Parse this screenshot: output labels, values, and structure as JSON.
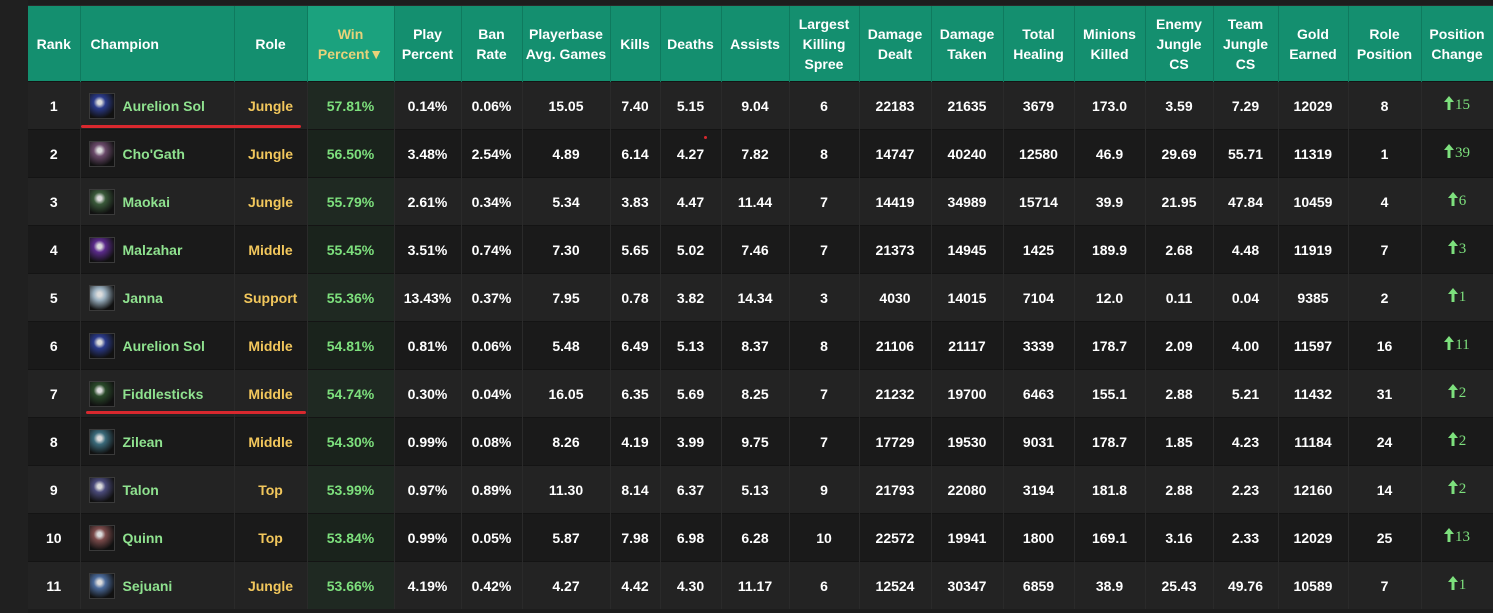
{
  "headers": {
    "rank": "Rank",
    "champion": "Champion",
    "role": "Role",
    "win_percent": "Win Percent▼",
    "play_percent": "Play Percent",
    "ban_rate": "Ban Rate",
    "avg_games": "Playerbase Avg. Games",
    "kills": "Kills",
    "deaths": "Deaths",
    "assists": "Assists",
    "killing_spree": "Largest Killing Spree",
    "damage_dealt": "Damage Dealt",
    "damage_taken": "Damage Taken",
    "total_healing": "Total Healing",
    "minions_killed": "Minions Killed",
    "enemy_jungle_cs": "Enemy Jungle CS",
    "team_jungle_cs": "Team Jungle CS",
    "gold_earned": "Gold Earned",
    "role_position": "Role Position",
    "position_change": "Position Change"
  },
  "colors": {
    "header_bg": "#148f6f",
    "champion_text": "#8fe28f",
    "role_text": "#f2c75c",
    "win_text": "#7de07d",
    "annotation_red": "#d8282e"
  },
  "rows": [
    {
      "rank": "1",
      "champion": "Aurelion Sol",
      "icon": "aurelion-sol-icon",
      "icon_color": "#2a3a8a",
      "role": "Jungle",
      "win": "57.81%",
      "play": "0.14%",
      "ban": "0.06%",
      "avg_games": "15.05",
      "kills": "7.40",
      "deaths": "5.15",
      "assists": "9.04",
      "spree": "6",
      "dmg_dealt": "22183",
      "dmg_taken": "21635",
      "healing": "3679",
      "minions": "173.0",
      "enemy_jcs": "3.59",
      "team_jcs": "7.29",
      "gold": "12029",
      "role_pos": "8",
      "pos_change": "15"
    },
    {
      "rank": "2",
      "champion": "Cho'Gath",
      "icon": "chogath-icon",
      "icon_color": "#6a4a6a",
      "role": "Jungle",
      "win": "56.50%",
      "play": "3.48%",
      "ban": "2.54%",
      "avg_games": "4.89",
      "kills": "6.14",
      "deaths": "4.27",
      "assists": "7.82",
      "spree": "8",
      "dmg_dealt": "14747",
      "dmg_taken": "40240",
      "healing": "12580",
      "minions": "46.9",
      "enemy_jcs": "29.69",
      "team_jcs": "55.71",
      "gold": "11319",
      "role_pos": "1",
      "pos_change": "39"
    },
    {
      "rank": "3",
      "champion": "Maokai",
      "icon": "maokai-icon",
      "icon_color": "#3a5a3a",
      "role": "Jungle",
      "win": "55.79%",
      "play": "2.61%",
      "ban": "0.34%",
      "avg_games": "5.34",
      "kills": "3.83",
      "deaths": "4.47",
      "assists": "11.44",
      "spree": "7",
      "dmg_dealt": "14419",
      "dmg_taken": "34989",
      "healing": "15714",
      "minions": "39.9",
      "enemy_jcs": "21.95",
      "team_jcs": "47.84",
      "gold": "10459",
      "role_pos": "4",
      "pos_change": "6"
    },
    {
      "rank": "4",
      "champion": "Malzahar",
      "icon": "malzahar-icon",
      "icon_color": "#5a2a8a",
      "role": "Middle",
      "win": "55.45%",
      "play": "3.51%",
      "ban": "0.74%",
      "avg_games": "7.30",
      "kills": "5.65",
      "deaths": "5.02",
      "assists": "7.46",
      "spree": "7",
      "dmg_dealt": "21373",
      "dmg_taken": "14945",
      "healing": "1425",
      "minions": "189.9",
      "enemy_jcs": "2.68",
      "team_jcs": "4.48",
      "gold": "11919",
      "role_pos": "7",
      "pos_change": "3"
    },
    {
      "rank": "5",
      "champion": "Janna",
      "icon": "janna-icon",
      "icon_color": "#9ab0c0",
      "role": "Support",
      "win": "55.36%",
      "play": "13.43%",
      "ban": "0.37%",
      "avg_games": "7.95",
      "kills": "0.78",
      "deaths": "3.82",
      "assists": "14.34",
      "spree": "3",
      "dmg_dealt": "4030",
      "dmg_taken": "14015",
      "healing": "7104",
      "minions": "12.0",
      "enemy_jcs": "0.11",
      "team_jcs": "0.04",
      "gold": "9385",
      "role_pos": "2",
      "pos_change": "1"
    },
    {
      "rank": "6",
      "champion": "Aurelion Sol",
      "icon": "aurelion-sol-icon",
      "icon_color": "#2a3a8a",
      "role": "Middle",
      "win": "54.81%",
      "play": "0.81%",
      "ban": "0.06%",
      "avg_games": "5.48",
      "kills": "6.49",
      "deaths": "5.13",
      "assists": "8.37",
      "spree": "8",
      "dmg_dealt": "21106",
      "dmg_taken": "21117",
      "healing": "3339",
      "minions": "178.7",
      "enemy_jcs": "2.09",
      "team_jcs": "4.00",
      "gold": "11597",
      "role_pos": "16",
      "pos_change": "11"
    },
    {
      "rank": "7",
      "champion": "Fiddlesticks",
      "icon": "fiddlesticks-icon",
      "icon_color": "#2a4a2a",
      "role": "Middle",
      "win": "54.74%",
      "play": "0.30%",
      "ban": "0.04%",
      "avg_games": "16.05",
      "kills": "6.35",
      "deaths": "5.69",
      "assists": "8.25",
      "spree": "7",
      "dmg_dealt": "21232",
      "dmg_taken": "19700",
      "healing": "6463",
      "minions": "155.1",
      "enemy_jcs": "2.88",
      "team_jcs": "5.21",
      "gold": "11432",
      "role_pos": "31",
      "pos_change": "2"
    },
    {
      "rank": "8",
      "champion": "Zilean",
      "icon": "zilean-icon",
      "icon_color": "#3a6a7a",
      "role": "Middle",
      "win": "54.30%",
      "play": "0.99%",
      "ban": "0.08%",
      "avg_games": "8.26",
      "kills": "4.19",
      "deaths": "3.99",
      "assists": "9.75",
      "spree": "7",
      "dmg_dealt": "17729",
      "dmg_taken": "19530",
      "healing": "9031",
      "minions": "178.7",
      "enemy_jcs": "1.85",
      "team_jcs": "4.23",
      "gold": "11184",
      "role_pos": "24",
      "pos_change": "2"
    },
    {
      "rank": "9",
      "champion": "Talon",
      "icon": "talon-icon",
      "icon_color": "#4a4a7a",
      "role": "Top",
      "win": "53.99%",
      "play": "0.97%",
      "ban": "0.89%",
      "avg_games": "11.30",
      "kills": "8.14",
      "deaths": "6.37",
      "assists": "5.13",
      "spree": "9",
      "dmg_dealt": "21793",
      "dmg_taken": "22080",
      "healing": "3194",
      "minions": "181.8",
      "enemy_jcs": "2.88",
      "team_jcs": "2.23",
      "gold": "12160",
      "role_pos": "14",
      "pos_change": "2"
    },
    {
      "rank": "10",
      "champion": "Quinn",
      "icon": "quinn-icon",
      "icon_color": "#7a4a4a",
      "role": "Top",
      "win": "53.84%",
      "play": "0.99%",
      "ban": "0.05%",
      "avg_games": "5.87",
      "kills": "7.98",
      "deaths": "6.98",
      "assists": "6.28",
      "spree": "10",
      "dmg_dealt": "22572",
      "dmg_taken": "19941",
      "healing": "1800",
      "minions": "169.1",
      "enemy_jcs": "3.16",
      "team_jcs": "2.33",
      "gold": "12029",
      "role_pos": "25",
      "pos_change": "13"
    },
    {
      "rank": "11",
      "champion": "Sejuani",
      "icon": "sejuani-icon",
      "icon_color": "#4a6a9a",
      "role": "Jungle",
      "win": "53.66%",
      "play": "4.19%",
      "ban": "0.42%",
      "avg_games": "4.27",
      "kills": "4.42",
      "deaths": "4.30",
      "assists": "11.17",
      "spree": "6",
      "dmg_dealt": "12524",
      "dmg_taken": "30347",
      "healing": "6859",
      "minions": "38.9",
      "enemy_jcs": "25.43",
      "team_jcs": "49.76",
      "gold": "10589",
      "role_pos": "7",
      "pos_change": "1"
    }
  ]
}
